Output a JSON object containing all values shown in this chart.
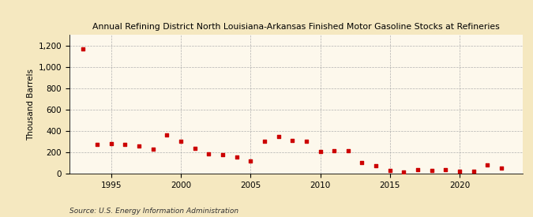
{
  "title": "Annual Refining District North Louisiana-Arkansas Finished Motor Gasoline Stocks at Refineries",
  "ylabel": "Thousand Barrels",
  "source": "Source: U.S. Energy Information Administration",
  "background_color": "#f5e8c0",
  "plot_background_color": "#fdf8ec",
  "years": [
    1993,
    1994,
    1995,
    1996,
    1997,
    1998,
    1999,
    2000,
    2001,
    2002,
    2003,
    2004,
    2005,
    2006,
    2007,
    2008,
    2009,
    2010,
    2011,
    2012,
    2013,
    2014,
    2015,
    2016,
    2017,
    2018,
    2019,
    2020,
    2021,
    2022,
    2023
  ],
  "values": [
    1170,
    270,
    280,
    270,
    260,
    230,
    360,
    300,
    235,
    183,
    178,
    157,
    120,
    305,
    345,
    310,
    305,
    205,
    215,
    215,
    100,
    75,
    30,
    15,
    35,
    30,
    35,
    20,
    20,
    80,
    55
  ],
  "marker_color": "#cc0000",
  "marker_size": 12,
  "ylim": [
    0,
    1300
  ],
  "yticks": [
    0,
    200,
    400,
    600,
    800,
    1000,
    1200
  ],
  "ytick_labels": [
    "0",
    "200",
    "400",
    "600",
    "800",
    "1,000",
    "1,200"
  ],
  "xlim": [
    1992.0,
    2024.5
  ],
  "xticks": [
    1995,
    2000,
    2005,
    2010,
    2015,
    2020
  ]
}
